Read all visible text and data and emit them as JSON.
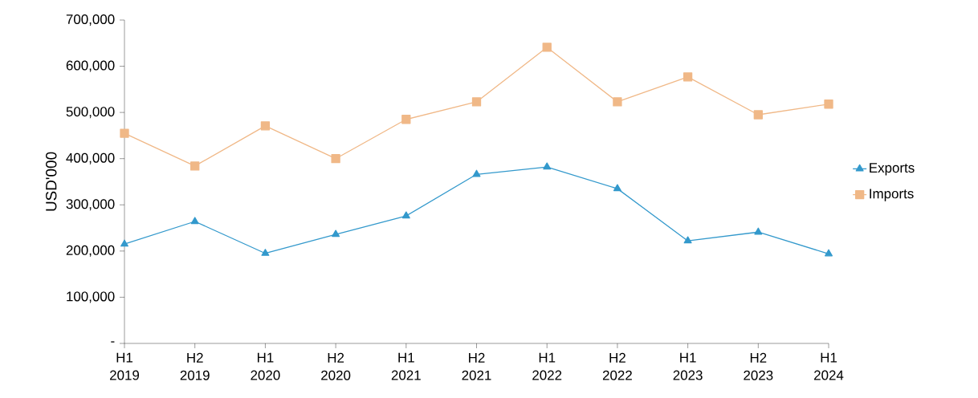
{
  "chart_data": {
    "type": "line",
    "ylabel": "USD'000",
    "categories": [
      "H1 2019",
      "H2 2019",
      "H1 2020",
      "H2 2020",
      "H1 2021",
      "H2 2021",
      "H1 2022",
      "H2 2022",
      "H1 2023",
      "H2 2023",
      "H1 2024"
    ],
    "series": [
      {
        "name": "Exports",
        "color": "#3399cc",
        "marker": "triangle",
        "values": [
          215000,
          264000,
          195000,
          236000,
          276000,
          366000,
          382000,
          335000,
          222000,
          241000,
          194000
        ]
      },
      {
        "name": "Imports",
        "color": "#f0b887",
        "marker": "square",
        "values": [
          455000,
          384000,
          471000,
          400000,
          485000,
          523000,
          641000,
          523000,
          577000,
          495000,
          518000
        ]
      }
    ],
    "ylim": [
      0,
      700000
    ],
    "yticks": [
      {
        "value": 0,
        "label": "-"
      },
      {
        "value": 100000,
        "label": "100,000"
      },
      {
        "value": 200000,
        "label": "200,000"
      },
      {
        "value": 300000,
        "label": "300,000"
      },
      {
        "value": 400000,
        "label": "400,000"
      },
      {
        "value": 500000,
        "label": "500,000"
      },
      {
        "value": 600000,
        "label": "600,000"
      },
      {
        "value": 700000,
        "label": "700,000"
      }
    ],
    "grid": false,
    "legend": "right",
    "line_style": "solid"
  }
}
